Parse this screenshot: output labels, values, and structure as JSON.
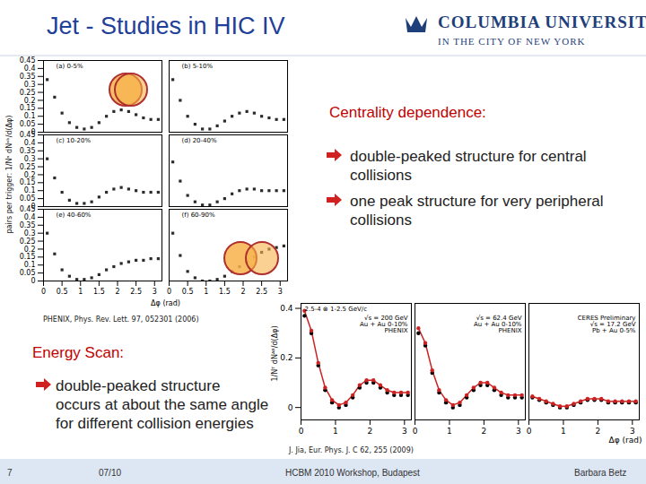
{
  "slide": {
    "title": "Jet - Studies in HIC IV",
    "logo": [
      "COLUMBIA UNIVERSITY",
      "IN THE CITY OF NEW YORK"
    ],
    "centrality_heading": "Centrality dependence:",
    "centrality_bullets": [
      "double-peaked structure for central collisions",
      "one peak structure for very peripheral collisions"
    ],
    "centrality_reference": "PHENIX, Phys. Rev. Lett. 97, 052301 (2006)",
    "energy_heading": "Energy Scan:",
    "energy_bullets": [
      "double-peaked structure occurs at about the same angle for different collision energies"
    ],
    "energy_reference": "J. Jia, Eur. Phys. J. C 62, 255 (2009)",
    "footer": {
      "page": "7",
      "date": "07/10",
      "event": "HCBM 2010 Workshop, Budapest",
      "author": "Barbara Betz"
    }
  },
  "chart_data": [
    {
      "type": "scatter",
      "xlabel": "Δφ (rad)",
      "ylabel": "pairs per trigger: 1/Nᵃ dNᵃᵇ/d(Δφ)",
      "x": [
        0.1,
        0.3,
        0.5,
        0.7,
        0.9,
        1.1,
        1.3,
        1.5,
        1.7,
        1.9,
        2.1,
        2.3,
        2.5,
        2.7,
        2.9,
        3.1
      ],
      "xlim": [
        0,
        3.2
      ],
      "xticks": [
        0,
        0.5,
        1,
        1.5,
        2,
        2.5,
        3
      ],
      "ylim": [
        0,
        0.45
      ],
      "yticks": [
        0,
        0.05,
        0.1,
        0.15,
        0.2,
        0.25,
        0.3,
        0.35,
        0.4,
        0.45
      ],
      "color": "#2b2b2b",
      "marker": "square",
      "panels": [
        {
          "label": "(a) 0-5%",
          "values": [
            0.33,
            0.22,
            0.12,
            0.06,
            0.03,
            0.02,
            0.03,
            0.06,
            0.1,
            0.13,
            0.14,
            0.13,
            0.11,
            0.09,
            0.08,
            0.08
          ]
        },
        {
          "label": "(b) 5-10%",
          "values": [
            0.33,
            0.2,
            0.1,
            0.05,
            0.02,
            0.02,
            0.04,
            0.07,
            0.1,
            0.12,
            0.13,
            0.12,
            0.1,
            0.09,
            0.08,
            0.08
          ]
        },
        {
          "label": "(c) 10-20%",
          "values": [
            0.3,
            0.18,
            0.09,
            0.04,
            0.02,
            0.02,
            0.03,
            0.06,
            0.09,
            0.11,
            0.12,
            0.11,
            0.1,
            0.09,
            0.09,
            0.09
          ]
        },
        {
          "label": "(d) 20-40%",
          "values": [
            0.28,
            0.16,
            0.07,
            0.03,
            0.01,
            0.01,
            0.03,
            0.05,
            0.08,
            0.1,
            0.11,
            0.11,
            0.1,
            0.1,
            0.1,
            0.1
          ]
        },
        {
          "label": "(e) 40-60%",
          "values": [
            0.3,
            0.17,
            0.07,
            0.03,
            0.01,
            0.01,
            0.02,
            0.04,
            0.07,
            0.09,
            0.11,
            0.12,
            0.13,
            0.13,
            0.14,
            0.14
          ]
        },
        {
          "label": "(f) 60-90%",
          "values": [
            0.3,
            0.16,
            0.06,
            0.02,
            0.0,
            0.0,
            0.01,
            0.03,
            0.06,
            0.09,
            0.12,
            0.15,
            0.18,
            0.2,
            0.21,
            0.22
          ]
        }
      ]
    },
    {
      "type": "scatter",
      "annotation": "2.5-4 ⊗ 1-2.5 GeV/c",
      "xlabel": "Δφ (rad)",
      "ylabel": "1/Nᵀ dNᴬᴮ/d(Δφ)",
      "x": [
        0.1,
        0.3,
        0.5,
        0.7,
        0.9,
        1.1,
        1.3,
        1.5,
        1.7,
        1.9,
        2.1,
        2.3,
        2.5,
        2.7,
        2.9,
        3.1
      ],
      "xlim": [
        0,
        3.2
      ],
      "xticks": [
        0,
        1,
        2,
        3
      ],
      "ylim": [
        -0.05,
        0.42
      ],
      "yticks": [
        0,
        0.2,
        0.4
      ],
      "panels": [
        {
          "label": [
            "√s = 200 GeV",
            "Au + Au 0-10%",
            "PHENIX"
          ],
          "series": [
            {
              "color": "#000000",
              "marker": "circle",
              "values": [
                0.37,
                0.3,
                0.17,
                0.07,
                0.02,
                0.0,
                0.01,
                0.04,
                0.08,
                0.1,
                0.1,
                0.08,
                0.06,
                0.05,
                0.05,
                0.05
              ]
            },
            {
              "type": "line",
              "color": "#cc2222",
              "marker": "circle",
              "line_style": "solid",
              "values": [
                0.39,
                0.31,
                0.18,
                0.08,
                0.03,
                0.01,
                0.02,
                0.05,
                0.09,
                0.11,
                0.11,
                0.09,
                0.07,
                0.06,
                0.06,
                0.06
              ]
            }
          ]
        },
        {
          "label": [
            "√s = 62.4 GeV",
            "Au + Au 0-10%",
            "PHENIX"
          ],
          "series": [
            {
              "color": "#000000",
              "marker": "circle",
              "values": [
                0.3,
                0.25,
                0.14,
                0.06,
                0.02,
                0.0,
                0.01,
                0.04,
                0.07,
                0.09,
                0.09,
                0.07,
                0.05,
                0.04,
                0.04,
                0.04
              ]
            },
            {
              "type": "line",
              "color": "#cc2222",
              "marker": "circle",
              "line_style": "solid",
              "values": [
                0.32,
                0.26,
                0.15,
                0.07,
                0.03,
                0.01,
                0.02,
                0.05,
                0.08,
                0.1,
                0.1,
                0.08,
                0.06,
                0.05,
                0.05,
                0.05
              ]
            }
          ]
        },
        {
          "label": [
            "CERES Preliminary",
            "√s = 17.2 GeV",
            "Pb + Au 0-5%"
          ],
          "series": [
            {
              "color": "#000000",
              "marker": "circle",
              "values": [
                0.04,
                0.03,
                0.02,
                0.01,
                0.0,
                0.0,
                0.01,
                0.02,
                0.03,
                0.03,
                0.03,
                0.02,
                0.02,
                0.02,
                0.02,
                0.02
              ]
            },
            {
              "type": "line",
              "color": "#cc2222",
              "marker": "circle",
              "line_style": "solid",
              "values": [
                0.045,
                0.035,
                0.025,
                0.015,
                0.005,
                0.005,
                0.015,
                0.025,
                0.035,
                0.035,
                0.035,
                0.025,
                0.025,
                0.025,
                0.025,
                0.025
              ]
            }
          ]
        }
      ]
    }
  ]
}
